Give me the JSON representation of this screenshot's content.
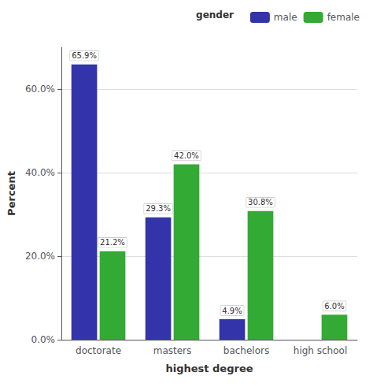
{
  "chart_data": {
    "type": "bar",
    "categories": [
      "doctorate",
      "masters",
      "bachelors",
      "high school"
    ],
    "series": [
      {
        "name": "male",
        "color": "#3333aa",
        "values": [
          65.9,
          29.3,
          4.9,
          0.0
        ],
        "value_labels": [
          "65.9%",
          "29.3%",
          "4.9%",
          null
        ]
      },
      {
        "name": "female",
        "color": "#33aa33",
        "values": [
          21.2,
          42.0,
          30.8,
          6.0
        ],
        "value_labels": [
          "21.2%",
          "42.0%",
          "30.8%",
          "6.0%"
        ]
      }
    ],
    "xlabel": "highest degree",
    "ylabel": "Percent",
    "ylim": [
      0,
      70
    ],
    "yticks": [
      {
        "value": 0,
        "label": "0.0%"
      },
      {
        "value": 20,
        "label": "20.0%"
      },
      {
        "value": 40,
        "label": "40.0%"
      },
      {
        "value": 60,
        "label": "60.0%"
      }
    ],
    "grid": true,
    "legend": "upper right",
    "legend_title": "gender",
    "data_labels": true
  }
}
